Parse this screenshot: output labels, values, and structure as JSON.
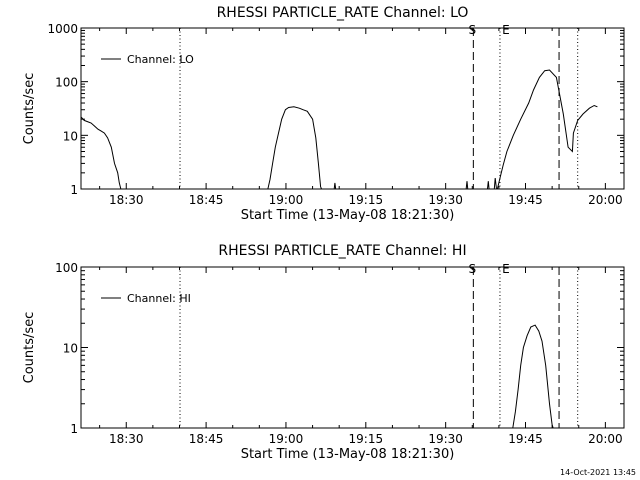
{
  "footer_timestamp": "14-Oct-2021 13:45",
  "chart_data": [
    {
      "type": "line",
      "title": "RHESSI PARTICLE_RATE Channel: LO",
      "xlabel": "Start Time (13-May-08 18:21:30)",
      "ylabel": "Counts/sec",
      "legend": {
        "label": "Channel: LO",
        "placement": "top-left"
      },
      "x_units": "minutes after 18:21:30",
      "xlim": [
        0,
        102
      ],
      "yscale": "log",
      "ylim": [
        1,
        1000
      ],
      "xticks": [
        "18:30",
        "18:45",
        "19:00",
        "19:15",
        "19:30",
        "19:45",
        "20:00"
      ],
      "yticks": [
        "1",
        "10",
        "100",
        "1000"
      ],
      "markers": [
        {
          "t": 18.6,
          "style": "dotted",
          "label": ""
        },
        {
          "t": 73.7,
          "style": "dashed",
          "label": "S"
        },
        {
          "t": 78.7,
          "style": "dotted",
          "label": "E"
        },
        {
          "t": 89.8,
          "style": "dashed",
          "label": ""
        },
        {
          "t": 93.3,
          "style": "dotted",
          "label": ""
        }
      ],
      "series": [
        {
          "name": "Channel: LO",
          "segments": [
            [
              [
                0.0,
                22
              ],
              [
                0.6,
                19
              ],
              [
                1.2,
                18
              ],
              [
                1.9,
                17
              ],
              [
                2.5,
                15
              ],
              [
                3.2,
                13
              ],
              [
                3.8,
                12
              ],
              [
                4.4,
                11
              ],
              [
                5.0,
                9
              ],
              [
                5.7,
                6
              ],
              [
                6.3,
                3
              ],
              [
                6.9,
                2
              ],
              [
                7.2,
                1.3
              ],
              [
                7.6,
                0.9
              ],
              [
                8.0,
                0.85
              ]
            ],
            [
              [
                35.0,
                0.9
              ],
              [
                35.5,
                1.5
              ],
              [
                36.0,
                3
              ],
              [
                36.5,
                6
              ],
              [
                37.1,
                11
              ],
              [
                37.7,
                20
              ],
              [
                38.4,
                30
              ],
              [
                39.0,
                33
              ],
              [
                40.0,
                34
              ],
              [
                41.0,
                32
              ],
              [
                41.7,
                30
              ],
              [
                42.5,
                28
              ],
              [
                43.5,
                20
              ],
              [
                44.1,
                9
              ],
              [
                44.6,
                3
              ],
              [
                45.0,
                1.1
              ],
              [
                45.4,
                0.9
              ]
            ],
            [
              [
                47.5,
                0.9
              ],
              [
                47.7,
                1.3
              ],
              [
                47.9,
                0.9
              ]
            ],
            [
              [
                72.3,
                0.9
              ],
              [
                72.5,
                1.4
              ],
              [
                72.7,
                0.9
              ]
            ],
            [
              [
                76.3,
                0.9
              ],
              [
                76.5,
                1.4
              ],
              [
                76.7,
                0.9
              ]
            ],
            [
              [
                77.6,
                0.9
              ],
              [
                77.8,
                1.6
              ],
              [
                78.1,
                0.9
              ],
              [
                78.7,
                1.6
              ],
              [
                79.3,
                2.8
              ],
              [
                80.0,
                5
              ],
              [
                81.2,
                10
              ],
              [
                82.6,
                20
              ],
              [
                84.1,
                40
              ],
              [
                85.0,
                70
              ],
              [
                86.1,
                120
              ],
              [
                87.1,
                160
              ],
              [
                88.0,
                165
              ],
              [
                89.3,
                120
              ],
              [
                90.6,
                25
              ],
              [
                91.5,
                6
              ],
              [
                92.3,
                5
              ],
              [
                92.5,
                11
              ],
              [
                93.3,
                19
              ],
              [
                94.3,
                25
              ],
              [
                95.5,
                32
              ],
              [
                96.4,
                36
              ],
              [
                97.0,
                34
              ]
            ]
          ]
        }
      ]
    },
    {
      "type": "line",
      "title": "RHESSI PARTICLE_RATE Channel: HI",
      "xlabel": "Start Time (13-May-08 18:21:30)",
      "ylabel": "Counts/sec",
      "legend": {
        "label": "Channel: HI",
        "placement": "top-left"
      },
      "x_units": "minutes after 18:21:30",
      "xlim": [
        0,
        102
      ],
      "yscale": "log",
      "ylim": [
        1,
        100
      ],
      "xticks": [
        "18:30",
        "18:45",
        "19:00",
        "19:15",
        "19:30",
        "19:45",
        "20:00"
      ],
      "yticks": [
        "1",
        "10",
        "100"
      ],
      "markers": [
        {
          "t": 18.6,
          "style": "dotted",
          "label": ""
        },
        {
          "t": 73.7,
          "style": "dashed",
          "label": "S"
        },
        {
          "t": 78.7,
          "style": "dotted",
          "label": "E"
        },
        {
          "t": 89.8,
          "style": "dashed",
          "label": ""
        },
        {
          "t": 93.3,
          "style": "dotted",
          "label": ""
        }
      ],
      "series": [
        {
          "name": "Channel: HI",
          "segments": [
            [
              [
                81.0,
                0.9
              ],
              [
                81.6,
                1.6
              ],
              [
                82.1,
                3
              ],
              [
                82.6,
                6
              ],
              [
                83.1,
                10
              ],
              [
                83.8,
                14
              ],
              [
                84.5,
                18
              ],
              [
                85.3,
                19
              ],
              [
                86.0,
                16
              ],
              [
                86.6,
                12
              ],
              [
                87.3,
                6
              ],
              [
                88.0,
                2
              ],
              [
                88.5,
                1.1
              ],
              [
                88.9,
                0.9
              ]
            ]
          ]
        }
      ]
    }
  ]
}
